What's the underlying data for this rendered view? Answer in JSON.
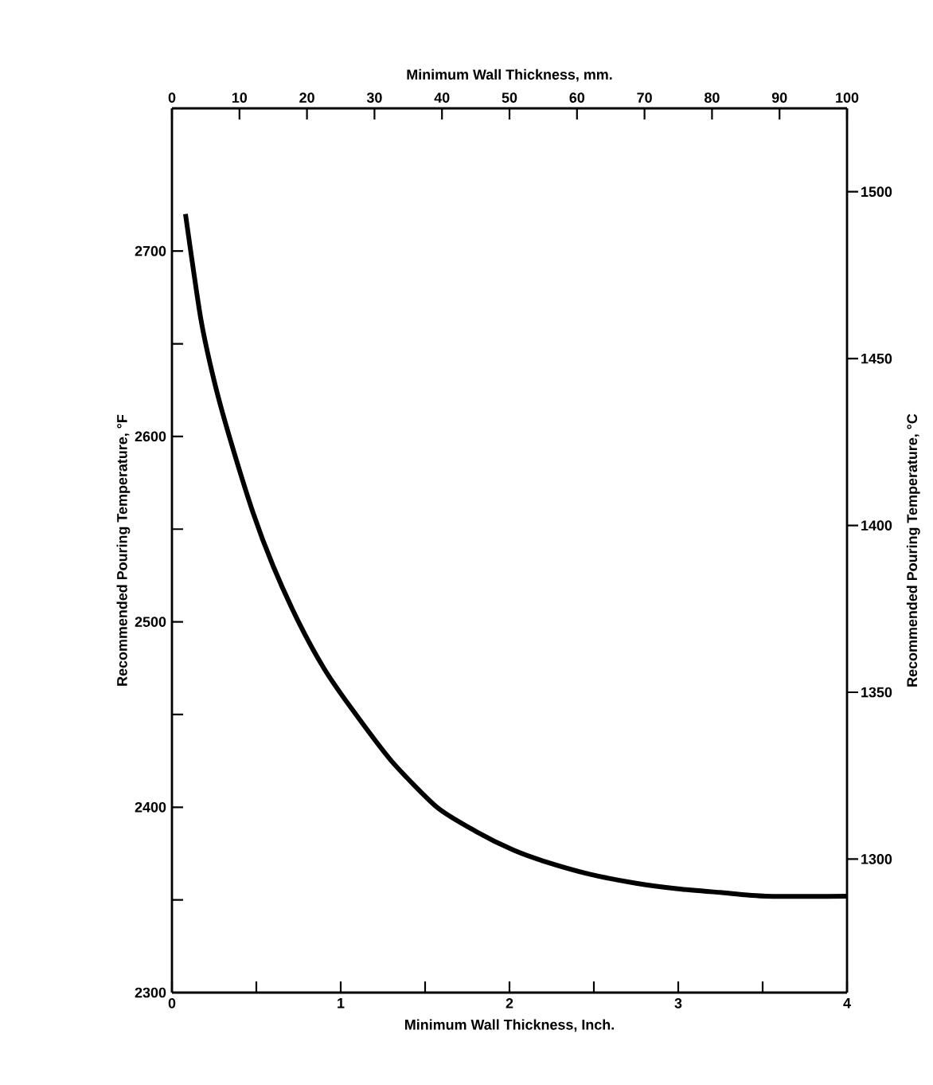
{
  "chart_data": {
    "type": "line",
    "xlabel": "Minimum Wall Thickness, Inch.",
    "x2label": "Minimum Wall Thickness, mm.",
    "ylabel": "Recommended Pouring Temperature, °F",
    "y2label": "Recommended Pouring Temperature, °C",
    "x": [
      0.08,
      0.17,
      0.25,
      0.34,
      0.48,
      0.6,
      0.75,
      0.9,
      1.05,
      1.3,
      1.57,
      1.8,
      2.02,
      2.2,
      2.47,
      2.75,
      3.0,
      3.25,
      3.52,
      4.0
    ],
    "values": [
      2720,
      2664,
      2630,
      2600,
      2559,
      2530,
      2500,
      2475,
      2455,
      2425,
      2400,
      2387,
      2377,
      2371,
      2364,
      2359,
      2356,
      2354,
      2352,
      2352
    ],
    "color": "#000000",
    "xlim": [
      0,
      4
    ],
    "ylim": [
      2300,
      2777
    ],
    "xticks": [
      0,
      {
        "value": 0.5,
        "label": null
      },
      1,
      {
        "value": 1.5,
        "label": null
      },
      2,
      {
        "value": 2.5,
        "label": null
      },
      3,
      {
        "value": 3.5,
        "label": null
      },
      4
    ],
    "yticks": [
      2300,
      {
        "value": 2350,
        "label": null
      },
      2400,
      {
        "value": 2450,
        "label": null
      },
      2500,
      {
        "value": 2550,
        "label": null
      },
      2600,
      {
        "value": 2650,
        "label": null
      },
      2700
    ],
    "x2lim": [
      0,
      100
    ],
    "x2ticks": [
      0,
      10,
      20,
      30,
      40,
      50,
      60,
      70,
      80,
      90,
      100
    ],
    "y2lim": [
      1260,
      1525
    ],
    "y2ticks": [
      1300,
      1350,
      1400,
      1450,
      1500
    ]
  }
}
